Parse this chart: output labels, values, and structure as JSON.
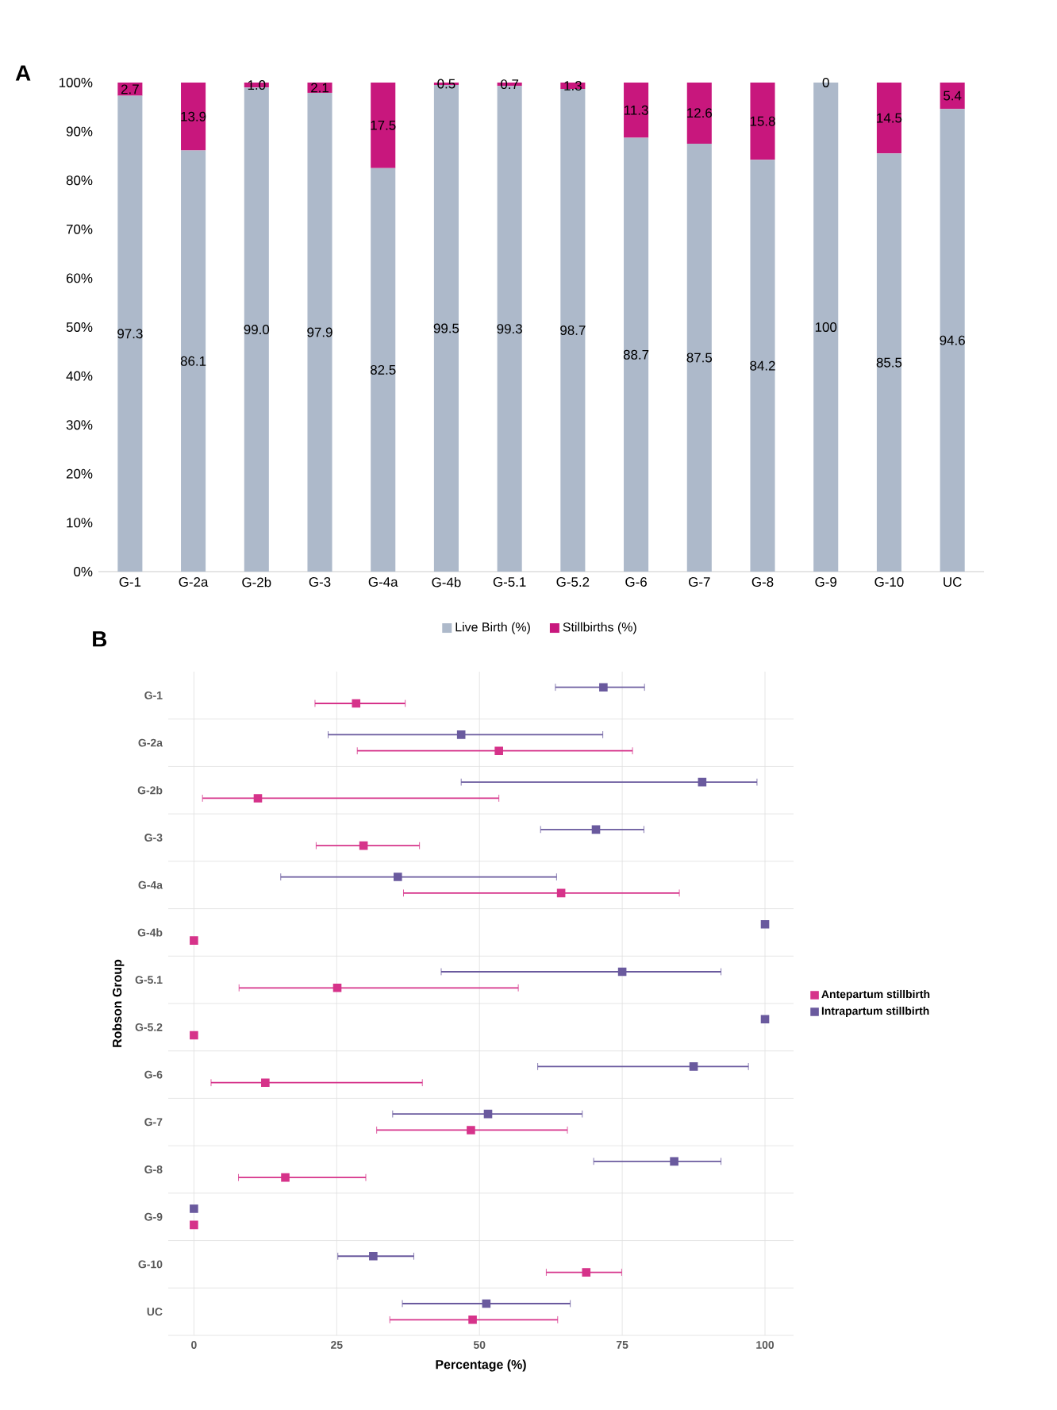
{
  "chart_data": [
    {
      "type": "bar",
      "title": "A",
      "stacked": true,
      "legend": "bottom",
      "categories": [
        "G-1",
        "G-2a",
        "G-2b",
        "G-3",
        "G-4a",
        "G-4b",
        "G-5.1",
        "G-5.2",
        "G-6",
        "G-7",
        "G-8",
        "G-9",
        "G-10",
        "UC"
      ],
      "series": [
        {
          "name": "Live Birth (%)",
          "color": "#adb9ca",
          "values": [
            97.3,
            86.1,
            99.0,
            97.9,
            82.5,
            99.5,
            99.3,
            98.7,
            88.7,
            87.5,
            84.2,
            100,
            85.5,
            94.6
          ],
          "value_labels": [
            "97.3",
            "86.1",
            "99.0",
            "97.9",
            "82.5",
            "99.5",
            "99.3",
            "98.7",
            "88.7",
            "87.5",
            "84.2",
            "100",
            "85.5",
            "94.6"
          ]
        },
        {
          "name": "Stillbirths (%)",
          "color": "#c8177d",
          "values": [
            2.7,
            13.9,
            1.0,
            2.1,
            17.5,
            0.5,
            0.7,
            1.3,
            11.3,
            12.6,
            15.8,
            0,
            14.5,
            5.4
          ],
          "value_labels": [
            "2.7",
            "13.9",
            "1.0",
            "2.1",
            "17.5",
            "0.5",
            "0.7",
            "1.3",
            "11.3",
            "12.6",
            "15.8",
            "0",
            "14.5",
            "5.4"
          ]
        }
      ],
      "ylim": [
        0,
        100
      ],
      "yticks": [
        {
          "value": 0,
          "label": "0%"
        },
        {
          "value": 10,
          "label": "10%"
        },
        {
          "value": 20,
          "label": "20%"
        },
        {
          "value": 30,
          "label": "30%"
        },
        {
          "value": 40,
          "label": "40%"
        },
        {
          "value": 50,
          "label": "50%"
        },
        {
          "value": 60,
          "label": "60%"
        },
        {
          "value": 70,
          "label": "70%"
        },
        {
          "value": 80,
          "label": "80%"
        },
        {
          "value": 90,
          "label": "90%"
        },
        {
          "value": 100,
          "label": "100%"
        }
      ]
    },
    {
      "type": "scatter",
      "title": "B",
      "orientation": "horizontal",
      "marker": "square",
      "grid": true,
      "legend": "right",
      "xlabel": "Percentage (%)",
      "ylabel": "Robson Group",
      "categories": [
        "G-1",
        "G-2a",
        "G-2b",
        "G-3",
        "G-4a",
        "G-4b",
        "G-5.1",
        "G-5.2",
        "G-6",
        "G-7",
        "G-8",
        "G-9",
        "G-10",
        "UC"
      ],
      "series": [
        {
          "name": "Antepartum stillbirth",
          "color": "#d6338a",
          "values": [
            28.4,
            53.4,
            11.2,
            29.7,
            64.3,
            0,
            25.1,
            0,
            12.5,
            48.5,
            16.0,
            0,
            68.7,
            48.8
          ],
          "errors": [
            [
              21.2,
              37.0
            ],
            [
              28.6,
              76.8
            ],
            [
              1.5,
              53.4
            ],
            [
              21.4,
              39.5
            ],
            [
              36.7,
              85.0
            ],
            null,
            [
              7.9,
              56.8
            ],
            null,
            [
              3.0,
              40.0
            ],
            [
              32.0,
              65.4
            ],
            [
              7.8,
              30.1
            ],
            null,
            [
              61.7,
              74.9
            ],
            [
              34.3,
              63.7
            ]
          ]
        },
        {
          "name": "Intrapartum stillbirth",
          "color": "#6a5a9e",
          "values": [
            71.7,
            46.8,
            89.0,
            70.4,
            35.7,
            100,
            75.0,
            100,
            87.5,
            51.5,
            84.1,
            0,
            31.4,
            51.2
          ],
          "errors": [
            [
              63.3,
              78.9
            ],
            [
              23.5,
              71.6
            ],
            [
              46.8,
              98.6
            ],
            [
              60.7,
              78.8
            ],
            [
              15.2,
              63.5
            ],
            null,
            [
              43.3,
              92.3
            ],
            null,
            [
              60.2,
              97.1
            ],
            [
              34.8,
              68.0
            ],
            [
              70.0,
              92.3
            ],
            null,
            [
              25.2,
              38.5
            ],
            [
              36.5,
              65.9
            ]
          ]
        }
      ],
      "xlim": [
        -4.5,
        105
      ],
      "xticks": [
        0,
        25,
        50,
        75,
        100
      ]
    }
  ]
}
